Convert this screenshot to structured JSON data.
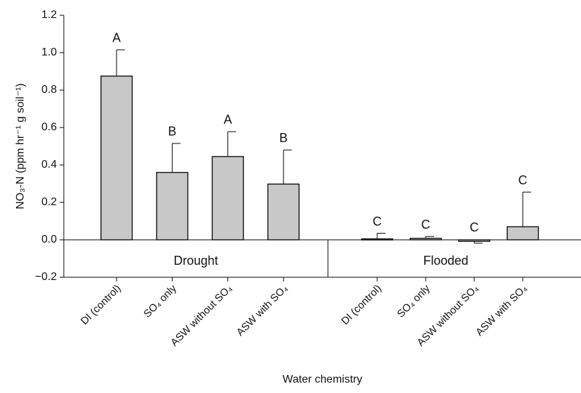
{
  "chart_data": {
    "type": "bar",
    "y_label": "NO₃-N (ppm hr⁻¹ g soil⁻¹)",
    "x_label": "Water chemistry",
    "color": "#c8c8c8",
    "ylim": [
      -0.2,
      1.2
    ],
    "yticks": [
      {
        "value": -0.2,
        "label": "−0.2"
      },
      {
        "value": 0,
        "label": "0.0"
      },
      0.2,
      0.4,
      0.6,
      0.8,
      {
        "value": 1,
        "label": "1.0"
      },
      1.2
    ],
    "groups": [
      {
        "name": "Drought",
        "categories": [
          "DI (control)",
          "SO₄ only",
          "ASW without SO₄",
          "ASW with SO₄"
        ],
        "values": [
          0.875,
          0.36,
          0.445,
          0.298
        ],
        "errors": [
          0.14,
          0.155,
          0.133,
          0.182
        ],
        "letters": [
          "A",
          "B",
          "A",
          "B"
        ]
      },
      {
        "name": "Flooded",
        "categories": [
          "DI (control)",
          "SO₄ only",
          "ASW without SO₄",
          "ASW with SO₄"
        ],
        "values": [
          0.005,
          0.008,
          -0.008,
          0.07
        ],
        "errors": [
          0.03,
          0.01,
          0.01,
          0.185
        ],
        "letters": [
          "C",
          "C",
          "C",
          "C"
        ]
      }
    ]
  }
}
